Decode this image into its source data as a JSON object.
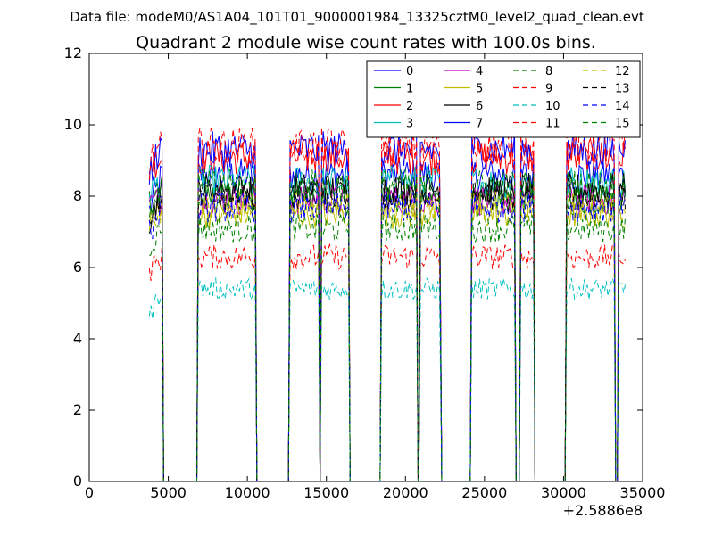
{
  "figure": {
    "suptitle": "Data file: modeM0/AS1A04_101T01_9000001984_13325cztM0_level2_quad_clean.evt"
  },
  "chart_data": {
    "type": "line",
    "title": "Quadrant 2 module wise count rates with 100.0s bins.",
    "xlabel": "",
    "ylabel": "",
    "x_offset_label": "+2.5886e8",
    "xlim": [
      0,
      35000
    ],
    "ylim": [
      0,
      12
    ],
    "xticks": [
      0,
      5000,
      10000,
      15000,
      20000,
      25000,
      30000,
      35000
    ],
    "xtick_labels": [
      "0",
      "5000",
      "10000",
      "15000",
      "20000",
      "25000",
      "30000",
      "35000"
    ],
    "yticks": [
      0,
      2,
      4,
      6,
      8,
      10,
      12
    ],
    "ytick_labels": [
      "0",
      "2",
      "4",
      "6",
      "8",
      "10",
      "12"
    ],
    "grid": false,
    "legend_position": "top-right",
    "legend_columns": 4,
    "segments": [
      [
        3800,
        4600
      ],
      [
        6900,
        10500
      ],
      [
        12700,
        14500
      ],
      [
        14700,
        16400
      ],
      [
        18500,
        20700
      ],
      [
        20950,
        22200
      ],
      [
        24200,
        26900
      ],
      [
        27300,
        28100
      ],
      [
        30200,
        33200
      ],
      [
        33500,
        33900
      ]
    ],
    "series": [
      {
        "name": "0",
        "color": "#0000ff",
        "dash": "solid",
        "level": 8.6,
        "start": 7.6
      },
      {
        "name": "1",
        "color": "#008000",
        "dash": "solid",
        "level": 7.9,
        "start": 7.9
      },
      {
        "name": "2",
        "color": "#ff0000",
        "dash": "solid",
        "level": 9.1,
        "start": 8.9
      },
      {
        "name": "3",
        "color": "#00bfbf",
        "dash": "solid",
        "level": 8.4,
        "start": 8.2
      },
      {
        "name": "4",
        "color": "#bf00bf",
        "dash": "solid",
        "level": 7.9,
        "start": 7.8
      },
      {
        "name": "5",
        "color": "#bfbf00",
        "dash": "solid",
        "level": 7.5,
        "start": 7.4
      },
      {
        "name": "6",
        "color": "#000000",
        "dash": "solid",
        "level": 8.2,
        "start": 7.3
      },
      {
        "name": "7",
        "color": "#0000ff",
        "dash": "solid",
        "level": 9.3,
        "start": 8.7
      },
      {
        "name": "8",
        "color": "#008000",
        "dash": "dashed",
        "level": 7.1,
        "start": 6.6
      },
      {
        "name": "9",
        "color": "#ff0000",
        "dash": "dashed",
        "level": 6.3,
        "start": 5.9
      },
      {
        "name": "10",
        "color": "#00bfbf",
        "dash": "dashed",
        "level": 5.4,
        "start": 4.6
      },
      {
        "name": "11",
        "color": "#ff0000",
        "dash": "dashed",
        "level": 9.4,
        "start": 8.9
      },
      {
        "name": "12",
        "color": "#bfbf00",
        "dash": "dashed",
        "level": 7.7,
        "start": 7.1
      },
      {
        "name": "13",
        "color": "#000000",
        "dash": "dashed",
        "level": 8.0,
        "start": 7.4
      },
      {
        "name": "14",
        "color": "#0000ff",
        "dash": "dashed",
        "level": 7.7,
        "start": 7.0
      },
      {
        "name": "15",
        "color": "#008000",
        "dash": "dashed",
        "level": 8.3,
        "start": 7.7
      }
    ]
  }
}
